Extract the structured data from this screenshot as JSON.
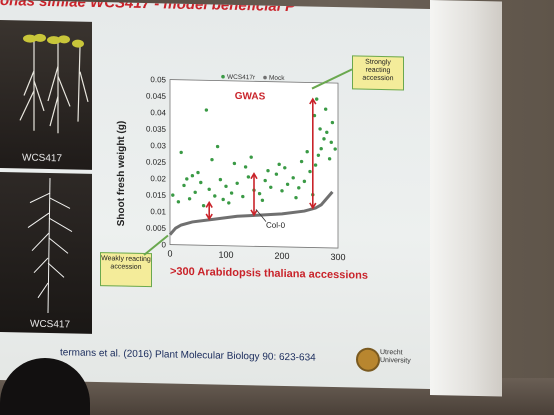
{
  "slide": {
    "headline": "onas simiae WCS417 - model beneficial P",
    "photo_label_top": "WCS417",
    "photo_label_bottom": "WCS417",
    "callout_strong": "Strongly reacting accession",
    "callout_weak": "Weakly reacting accession",
    "x_axis_note": ">300 Arabidopsis thaliana accessions",
    "citation": "termans et al. (2016) Plant Molecular Biology 90: 623-634",
    "logo_text_1": "Utrecht",
    "logo_text_2": "University"
  },
  "chart_data": {
    "type": "scatter",
    "title": "GWAS",
    "ylabel": "Shoot fresh weight (g)",
    "xlabel": "",
    "xlim": [
      0,
      300
    ],
    "ylim": [
      0,
      0.05
    ],
    "xticks": [
      0,
      100,
      200,
      300
    ],
    "yticks": [
      0,
      0.005,
      0.01,
      0.015,
      0.02,
      0.025,
      0.03,
      0.035,
      0.04,
      0.045,
      0.05
    ],
    "legend": [
      "WCS417r",
      "Mock"
    ],
    "legend_position": "top",
    "annotation": "Col-0",
    "colors": {
      "wcs417r": "#3a9a45",
      "mock": "#707070",
      "arrow": "#c9232a"
    },
    "series": [
      {
        "name": "Mock",
        "x": [
          0,
          10,
          20,
          40,
          80,
          120,
          160,
          200,
          240,
          260,
          270,
          280,
          290
        ],
        "y": [
          0.003,
          0.005,
          0.006,
          0.007,
          0.008,
          0.009,
          0.0095,
          0.01,
          0.011,
          0.012,
          0.013,
          0.015,
          0.017
        ]
      },
      {
        "name": "WCS417r",
        "x": [
          5,
          15,
          25,
          35,
          45,
          55,
          60,
          70,
          80,
          90,
          95,
          100,
          110,
          120,
          130,
          140,
          150,
          160,
          170,
          180,
          190,
          200,
          210,
          220,
          230,
          240,
          250,
          260,
          265,
          270,
          280,
          290,
          295,
          30,
          50,
          75,
          105,
          135,
          165,
          195,
          225,
          255,
          285,
          20,
          65,
          115,
          175,
          235,
          275,
          40,
          85,
          145,
          205,
          245,
          258,
          262,
          268,
          278,
          288
        ],
        "y": [
          0.015,
          0.013,
          0.018,
          0.014,
          0.016,
          0.019,
          0.012,
          0.017,
          0.015,
          0.02,
          0.014,
          0.018,
          0.016,
          0.019,
          0.015,
          0.021,
          0.017,
          0.016,
          0.02,
          0.018,
          0.022,
          0.017,
          0.019,
          0.021,
          0.018,
          0.02,
          0.023,
          0.025,
          0.028,
          0.03,
          0.035,
          0.038,
          0.03,
          0.02,
          0.022,
          0.026,
          0.013,
          0.024,
          0.014,
          0.025,
          0.015,
          0.016,
          0.027,
          0.028,
          0.041,
          0.025,
          0.023,
          0.026,
          0.033,
          0.021,
          0.03,
          0.027,
          0.024,
          0.029,
          0.04,
          0.045,
          0.036,
          0.042,
          0.032
        ]
      }
    ],
    "arrows": [
      {
        "x": 70,
        "y1": 0.008,
        "y2": 0.013
      },
      {
        "x": 150,
        "y1": 0.0095,
        "y2": 0.022
      },
      {
        "x": 255,
        "y1": 0.012,
        "y2": 0.045
      }
    ]
  }
}
